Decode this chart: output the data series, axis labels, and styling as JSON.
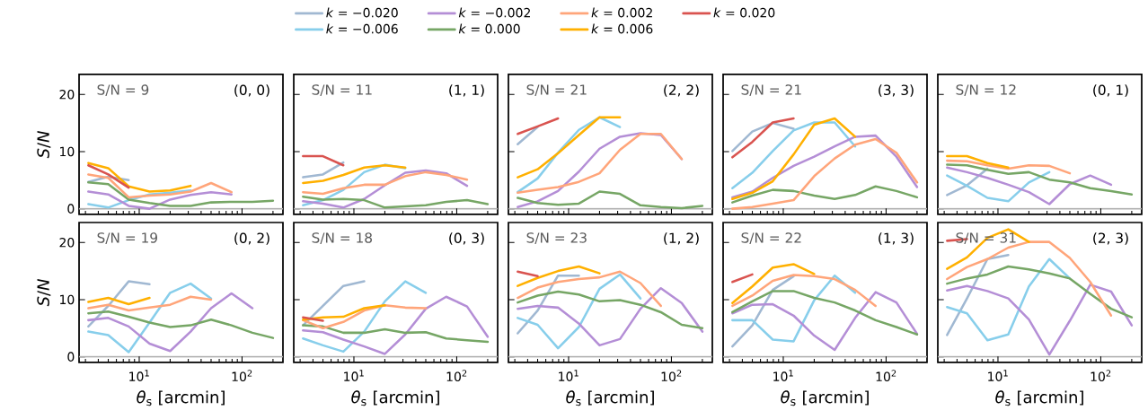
{
  "chart_data": [
    {
      "type": "line",
      "log": "x",
      "xlim": [
        2.6,
        250
      ],
      "ylim": [
        -1,
        23.5
      ],
      "xticks": [
        {
          "value": 3,
          "label": null
        },
        {
          "value": 4,
          "label": null
        },
        {
          "value": 5,
          "label": null
        },
        {
          "value": 6,
          "label": null
        },
        {
          "value": 7,
          "label": null
        },
        {
          "value": 8,
          "label": null
        },
        {
          "value": 9,
          "label": null
        },
        {
          "value": 10,
          "label": null
        },
        {
          "value": 20,
          "label": null
        },
        {
          "value": 30,
          "label": null
        },
        {
          "value": 40,
          "label": null
        },
        {
          "value": 50,
          "label": null
        },
        {
          "value": 60,
          "label": null
        },
        {
          "value": 70,
          "label": null
        },
        {
          "value": 80,
          "label": null
        },
        {
          "value": 90,
          "label": null
        },
        {
          "value": 100,
          "label": null
        },
        {
          "value": 200,
          "label": null
        }
      ],
      "yticks": [
        0,
        10,
        20
      ],
      "tick_labels": "y",
      "ylabel": "*S*/*N*",
      "annotations": [
        "S/N = 9",
        "(0, 0)"
      ],
      "ref_lines": [
        {
          "axis": "y",
          "value": 0,
          "color": "#b0b0b0"
        }
      ],
      "legend": "top",
      "x": [
        3.2,
        5,
        7.9,
        12.6,
        20,
        31.6,
        50,
        79,
        126,
        200
      ],
      "series": [
        {
          "name": "*k* = −0.020",
          "color": "#a0b8d2",
          "values": [
            4.7,
            5.6,
            5.0,
            null,
            null,
            null,
            null,
            null,
            null,
            null
          ]
        },
        {
          "name": "*k* = −0.006",
          "color": "#87ceeb",
          "values": [
            0.8,
            0.2,
            1.5,
            2.5,
            2.8,
            3.2,
            null,
            null,
            null,
            null
          ]
        },
        {
          "name": "*k* = −0.002",
          "color": "#b48ed6",
          "values": [
            3.0,
            2.5,
            0.5,
            0.0,
            1.6,
            2.4,
            2.9,
            2.5,
            null,
            null
          ]
        },
        {
          "name": "*k* = 0.000",
          "color": "#76a665",
          "values": [
            4.6,
            4.3,
            1.6,
            1.0,
            0.5,
            0.5,
            1.1,
            1.2,
            1.2,
            1.4
          ]
        },
        {
          "name": "*k* = 0.002",
          "color": "#ffa57a",
          "values": [
            6.0,
            5.4,
            2.0,
            2.3,
            2.5,
            3.0,
            4.5,
            2.9,
            null,
            null
          ]
        },
        {
          "name": "*k* = 0.006",
          "color": "#ffb000",
          "values": [
            8.0,
            7.1,
            3.9,
            3.0,
            3.2,
            4.0,
            null,
            null,
            null,
            null
          ]
        },
        {
          "name": "*k* = 0.020",
          "color": "#d9534f",
          "values": [
            7.6,
            6.0,
            3.7,
            null,
            null,
            null,
            null,
            null,
            null,
            null
          ]
        }
      ]
    },
    {
      "type": "line",
      "log": "x",
      "xlim": [
        2.6,
        250
      ],
      "ylim": [
        -1,
        23.5
      ],
      "xticks": [
        {
          "value": 3,
          "label": null
        },
        {
          "value": 4,
          "label": null
        },
        {
          "value": 5,
          "label": null
        },
        {
          "value": 6,
          "label": null
        },
        {
          "value": 7,
          "label": null
        },
        {
          "value": 8,
          "label": null
        },
        {
          "value": 9,
          "label": null
        },
        {
          "value": 10,
          "label": null
        },
        {
          "value": 20,
          "label": null
        },
        {
          "value": 30,
          "label": null
        },
        {
          "value": 40,
          "label": null
        },
        {
          "value": 50,
          "label": null
        },
        {
          "value": 60,
          "label": null
        },
        {
          "value": 70,
          "label": null
        },
        {
          "value": 80,
          "label": null
        },
        {
          "value": 90,
          "label": null
        },
        {
          "value": 100,
          "label": null
        },
        {
          "value": 200,
          "label": null
        }
      ],
      "yticks": [
        0,
        10,
        20
      ],
      "tick_labels": false,
      "annotations": [
        "S/N = 11",
        "(1, 1)"
      ],
      "ref_lines": [
        {
          "axis": "y",
          "value": 0,
          "color": "#b0b0b0"
        }
      ],
      "x": [
        3.2,
        5,
        7.9,
        12.6,
        20,
        31.6,
        50,
        79,
        126,
        200
      ],
      "series": [
        {
          "color": "#a0b8d2",
          "values": [
            5.5,
            6.0,
            8.1,
            null,
            null,
            null,
            null,
            null,
            null,
            null
          ]
        },
        {
          "color": "#87ceeb",
          "values": [
            0.6,
            1.5,
            3.3,
            6.4,
            7.7,
            7.1,
            null,
            null,
            null,
            null
          ]
        },
        {
          "color": "#b48ed6",
          "values": [
            1.3,
            0.9,
            0.2,
            1.7,
            4.1,
            6.3,
            6.7,
            6.2,
            4.0,
            null
          ]
        },
        {
          "color": "#76a665",
          "values": [
            2.1,
            1.6,
            1.7,
            1.5,
            0.2,
            0.4,
            0.6,
            1.2,
            1.5,
            0.8
          ]
        },
        {
          "color": "#ffa57a",
          "values": [
            2.9,
            2.6,
            3.6,
            4.2,
            4.2,
            5.7,
            6.4,
            5.9,
            5.1,
            null
          ]
        },
        {
          "color": "#ffb000",
          "values": [
            4.5,
            4.9,
            5.9,
            7.2,
            7.6,
            7.2,
            null,
            null,
            null,
            null
          ]
        },
        {
          "color": "#d9534f",
          "values": [
            9.2,
            9.2,
            7.6,
            null,
            null,
            null,
            null,
            null,
            null,
            null
          ]
        }
      ]
    },
    {
      "type": "line",
      "log": "x",
      "xlim": [
        2.6,
        250
      ],
      "ylim": [
        -1,
        23.5
      ],
      "xticks": [
        {
          "value": 3,
          "label": null
        },
        {
          "value": 4,
          "label": null
        },
        {
          "value": 5,
          "label": null
        },
        {
          "value": 6,
          "label": null
        },
        {
          "value": 7,
          "label": null
        },
        {
          "value": 8,
          "label": null
        },
        {
          "value": 9,
          "label": null
        },
        {
          "value": 10,
          "label": null
        },
        {
          "value": 20,
          "label": null
        },
        {
          "value": 30,
          "label": null
        },
        {
          "value": 40,
          "label": null
        },
        {
          "value": 50,
          "label": null
        },
        {
          "value": 60,
          "label": null
        },
        {
          "value": 70,
          "label": null
        },
        {
          "value": 80,
          "label": null
        },
        {
          "value": 90,
          "label": null
        },
        {
          "value": 100,
          "label": null
        },
        {
          "value": 200,
          "label": null
        }
      ],
      "yticks": [
        0,
        10,
        20
      ],
      "tick_labels": false,
      "annotations": [
        "S/N = 21",
        "(2, 2)"
      ],
      "ref_lines": [
        {
          "axis": "y",
          "value": 0,
          "color": "#b0b0b0"
        }
      ],
      "x": [
        3.2,
        5,
        7.9,
        12.6,
        20,
        31.6,
        50,
        79,
        126,
        200
      ],
      "series": [
        {
          "color": "#a0b8d2",
          "values": [
            11.3,
            14.3,
            null,
            null,
            null,
            null,
            null,
            null,
            null,
            null
          ]
        },
        {
          "color": "#87ceeb",
          "values": [
            2.9,
            5.3,
            9.8,
            13.8,
            16.0,
            14.3,
            null,
            null,
            null,
            null
          ]
        },
        {
          "color": "#b48ed6",
          "values": [
            0.3,
            1.3,
            3.1,
            6.5,
            10.5,
            12.6,
            13.2,
            12.9,
            8.7,
            null
          ]
        },
        {
          "color": "#76a665",
          "values": [
            1.9,
            1.0,
            0.7,
            0.9,
            3.0,
            2.6,
            0.6,
            0.3,
            0.1,
            0.5
          ]
        },
        {
          "color": "#ffa57a",
          "values": [
            2.8,
            3.3,
            3.8,
            4.7,
            6.2,
            10.3,
            13.1,
            13.1,
            8.7,
            null
          ]
        },
        {
          "color": "#ffb000",
          "values": [
            5.5,
            6.9,
            9.7,
            12.9,
            16.0,
            16.0,
            null,
            null,
            null,
            null
          ]
        },
        {
          "color": "#d9534f",
          "values": [
            13.1,
            14.4,
            15.8,
            null,
            null,
            null,
            null,
            null,
            null,
            null
          ]
        }
      ]
    },
    {
      "type": "line",
      "log": "x",
      "xlim": [
        2.6,
        250
      ],
      "ylim": [
        -1,
        23.5
      ],
      "xticks": [
        {
          "value": 3,
          "label": null
        },
        {
          "value": 4,
          "label": null
        },
        {
          "value": 5,
          "label": null
        },
        {
          "value": 6,
          "label": null
        },
        {
          "value": 7,
          "label": null
        },
        {
          "value": 8,
          "label": null
        },
        {
          "value": 9,
          "label": null
        },
        {
          "value": 10,
          "label": null
        },
        {
          "value": 20,
          "label": null
        },
        {
          "value": 30,
          "label": null
        },
        {
          "value": 40,
          "label": null
        },
        {
          "value": 50,
          "label": null
        },
        {
          "value": 60,
          "label": null
        },
        {
          "value": 70,
          "label": null
        },
        {
          "value": 80,
          "label": null
        },
        {
          "value": 90,
          "label": null
        },
        {
          "value": 100,
          "label": null
        },
        {
          "value": 200,
          "label": null
        }
      ],
      "yticks": [
        0,
        10,
        20
      ],
      "tick_labels": false,
      "annotations": [
        "S/N = 21",
        "(3, 3)"
      ],
      "ref_lines": [
        {
          "axis": "y",
          "value": 0,
          "color": "#b0b0b0"
        }
      ],
      "x": [
        3.2,
        5,
        7.9,
        12.6,
        20,
        31.6,
        50,
        79,
        126,
        200
      ],
      "series": [
        {
          "color": "#a0b8d2",
          "values": [
            10.1,
            13.5,
            15.0,
            14.0,
            null,
            null,
            null,
            null,
            null,
            null
          ]
        },
        {
          "color": "#87ceeb",
          "values": [
            3.6,
            6.3,
            10.1,
            13.7,
            15.1,
            15.1,
            10.9,
            null,
            null,
            null
          ]
        },
        {
          "color": "#b48ed6",
          "values": [
            2.0,
            3.0,
            5.4,
            7.5,
            9.1,
            10.9,
            12.6,
            12.8,
            9.1,
            3.8
          ]
        },
        {
          "color": "#76a665",
          "values": [
            1.1,
            2.3,
            3.3,
            3.1,
            2.3,
            1.7,
            2.4,
            3.9,
            3.1,
            2.0
          ]
        },
        {
          "color": "#ffa57a",
          "values": [
            0.0,
            0.3,
            0.9,
            1.5,
            5.7,
            8.8,
            11.2,
            12.2,
            9.8,
            4.6
          ]
        },
        {
          "color": "#ffb000",
          "values": [
            1.7,
            2.8,
            4.8,
            9.5,
            14.7,
            15.8,
            12.6,
            null,
            null,
            null
          ]
        },
        {
          "color": "#d9534f",
          "values": [
            9.0,
            11.7,
            15.1,
            15.8,
            null,
            null,
            null,
            null,
            null,
            null
          ]
        }
      ]
    },
    {
      "type": "line",
      "log": "x",
      "xlim": [
        2.6,
        250
      ],
      "ylim": [
        -1,
        23.5
      ],
      "xticks": [
        {
          "value": 3,
          "label": null
        },
        {
          "value": 4,
          "label": null
        },
        {
          "value": 5,
          "label": null
        },
        {
          "value": 6,
          "label": null
        },
        {
          "value": 7,
          "label": null
        },
        {
          "value": 8,
          "label": null
        },
        {
          "value": 9,
          "label": null
        },
        {
          "value": 10,
          "label": null
        },
        {
          "value": 20,
          "label": null
        },
        {
          "value": 30,
          "label": null
        },
        {
          "value": 40,
          "label": null
        },
        {
          "value": 50,
          "label": null
        },
        {
          "value": 60,
          "label": null
        },
        {
          "value": 70,
          "label": null
        },
        {
          "value": 80,
          "label": null
        },
        {
          "value": 90,
          "label": null
        },
        {
          "value": 100,
          "label": null
        },
        {
          "value": 200,
          "label": null
        }
      ],
      "yticks": [
        0,
        10,
        20
      ],
      "tick_labels": false,
      "annotations": [
        "S/N = 12",
        "(0, 1)"
      ],
      "ref_lines": [
        {
          "axis": "y",
          "value": 0,
          "color": "#b0b0b0"
        }
      ],
      "x": [
        3.2,
        5,
        7.9,
        12.6,
        20,
        31.6,
        50,
        79,
        126,
        200
      ],
      "series": [
        {
          "color": "#a0b8d2",
          "values": [
            2.4,
            4.1,
            7.0,
            null,
            null,
            null,
            null,
            null,
            null,
            null
          ]
        },
        {
          "color": "#87ceeb",
          "values": [
            5.8,
            4.0,
            1.9,
            1.3,
            4.6,
            6.4,
            null,
            null,
            null,
            null
          ]
        },
        {
          "color": "#b48ed6",
          "values": [
            7.2,
            6.4,
            5.4,
            4.2,
            2.9,
            0.8,
            4.3,
            5.8,
            4.2,
            null
          ]
        },
        {
          "color": "#76a665",
          "values": [
            7.7,
            7.6,
            6.8,
            6.1,
            6.4,
            5.1,
            4.6,
            3.6,
            3.1,
            2.5
          ]
        },
        {
          "color": "#ffa57a",
          "values": [
            8.4,
            8.3,
            7.6,
            7.0,
            7.6,
            7.5,
            6.2,
            null,
            null,
            null
          ]
        },
        {
          "color": "#ffb000",
          "values": [
            9.2,
            9.2,
            8.0,
            7.2,
            null,
            null,
            null,
            null,
            null,
            null
          ]
        }
      ]
    },
    {
      "type": "line",
      "log": "x",
      "xlim": [
        2.6,
        250
      ],
      "ylim": [
        -1,
        23.5
      ],
      "xticks": [
        {
          "value": 3,
          "label": null
        },
        {
          "value": 4,
          "label": null
        },
        {
          "value": 5,
          "label": null
        },
        {
          "value": 6,
          "label": null
        },
        {
          "value": 7,
          "label": null
        },
        {
          "value": 8,
          "label": null
        },
        {
          "value": 9,
          "label": null
        },
        {
          "value": 10,
          "label": "10$^{1}$"
        },
        {
          "value": 20,
          "label": null
        },
        {
          "value": 30,
          "label": null
        },
        {
          "value": 40,
          "label": null
        },
        {
          "value": 50,
          "label": null
        },
        {
          "value": 60,
          "label": null
        },
        {
          "value": 70,
          "label": null
        },
        {
          "value": 80,
          "label": null
        },
        {
          "value": 90,
          "label": null
        },
        {
          "value": 100,
          "label": "10$^{2}$"
        },
        {
          "value": 200,
          "label": null
        }
      ],
      "yticks": [
        0,
        10,
        20
      ],
      "xlabel": "*θ*$_{s}$ [arcmin]",
      "ylabel": "*S*/*N*",
      "annotations": [
        "S/N = 19",
        "(0, 2)"
      ],
      "ref_lines": [
        {
          "axis": "y",
          "value": 0,
          "color": "#b0b0b0"
        }
      ],
      "x": [
        3.2,
        5,
        7.9,
        12.6,
        20,
        31.6,
        50,
        79,
        126,
        200
      ],
      "series": [
        {
          "color": "#a0b8d2",
          "values": [
            5.3,
            8.9,
            13.2,
            12.7,
            null,
            null,
            null,
            null,
            null,
            null
          ]
        },
        {
          "color": "#87ceeb",
          "values": [
            4.4,
            3.8,
            0.8,
            6.0,
            11.2,
            12.8,
            10.2,
            null,
            null,
            null
          ]
        },
        {
          "color": "#b48ed6",
          "values": [
            6.4,
            6.8,
            5.3,
            2.3,
            1.0,
            4.4,
            8.5,
            11.1,
            8.5,
            null
          ]
        },
        {
          "color": "#76a665",
          "values": [
            7.6,
            7.9,
            7.0,
            6.0,
            5.2,
            5.5,
            6.5,
            5.5,
            4.2,
            3.3
          ]
        },
        {
          "color": "#ffa57a",
          "values": [
            8.5,
            9.1,
            8.1,
            8.6,
            9.1,
            10.5,
            10.0,
            null,
            null,
            null
          ]
        },
        {
          "color": "#ffb000",
          "values": [
            9.6,
            10.3,
            9.2,
            10.3,
            null,
            null,
            null,
            null,
            null,
            null
          ]
        }
      ]
    },
    {
      "type": "line",
      "log": "x",
      "xlim": [
        2.6,
        250
      ],
      "ylim": [
        -1,
        23.5
      ],
      "xticks": [
        {
          "value": 3,
          "label": null
        },
        {
          "value": 4,
          "label": null
        },
        {
          "value": 5,
          "label": null
        },
        {
          "value": 6,
          "label": null
        },
        {
          "value": 7,
          "label": null
        },
        {
          "value": 8,
          "label": null
        },
        {
          "value": 9,
          "label": null
        },
        {
          "value": 10,
          "label": "10$^{1}$"
        },
        {
          "value": 20,
          "label": null
        },
        {
          "value": 30,
          "label": null
        },
        {
          "value": 40,
          "label": null
        },
        {
          "value": 50,
          "label": null
        },
        {
          "value": 60,
          "label": null
        },
        {
          "value": 70,
          "label": null
        },
        {
          "value": 80,
          "label": null
        },
        {
          "value": 90,
          "label": null
        },
        {
          "value": 100,
          "label": "10$^{2}$"
        },
        {
          "value": 200,
          "label": null
        }
      ],
      "yticks": [
        0,
        10,
        20
      ],
      "tick_labels": "x",
      "xlabel": "*θ*$_{s}$ [arcmin]",
      "annotations": [
        "S/N = 18",
        "(0, 3)"
      ],
      "ref_lines": [
        {
          "axis": "y",
          "value": 0,
          "color": "#b0b0b0"
        }
      ],
      "x": [
        3.2,
        5,
        7.9,
        12.6,
        20,
        31.6,
        50,
        79,
        126,
        200
      ],
      "series": [
        {
          "color": "#a0b8d2",
          "values": [
            5.5,
            8.9,
            12.4,
            13.2,
            null,
            null,
            null,
            null,
            null,
            null
          ]
        },
        {
          "color": "#87ceeb",
          "values": [
            3.2,
            2.0,
            0.9,
            4.4,
            9.7,
            13.2,
            11.2,
            null,
            null,
            null
          ]
        },
        {
          "color": "#b48ed6",
          "values": [
            4.6,
            4.3,
            3.0,
            1.8,
            0.5,
            3.9,
            8.4,
            10.5,
            8.8,
            3.5
          ]
        },
        {
          "color": "#76a665",
          "values": [
            5.5,
            5.3,
            4.2,
            4.2,
            4.8,
            4.2,
            4.3,
            3.2,
            2.9,
            2.6
          ]
        },
        {
          "color": "#ffa57a",
          "values": [
            6.4,
            5.0,
            6.1,
            8.1,
            9.0,
            8.6,
            8.5,
            null,
            null,
            null
          ]
        },
        {
          "color": "#ffb000",
          "values": [
            6.5,
            6.9,
            7.0,
            8.5,
            9.0,
            null,
            null,
            null,
            null,
            null
          ]
        },
        {
          "color": "#d9534f",
          "values": [
            6.9,
            6.3,
            null,
            null,
            null,
            null,
            null,
            null,
            null,
            null
          ]
        }
      ]
    },
    {
      "type": "line",
      "log": "x",
      "xlim": [
        2.6,
        250
      ],
      "ylim": [
        -1,
        23.5
      ],
      "xticks": [
        {
          "value": 3,
          "label": null
        },
        {
          "value": 4,
          "label": null
        },
        {
          "value": 5,
          "label": null
        },
        {
          "value": 6,
          "label": null
        },
        {
          "value": 7,
          "label": null
        },
        {
          "value": 8,
          "label": null
        },
        {
          "value": 9,
          "label": null
        },
        {
          "value": 10,
          "label": "10$^{1}$"
        },
        {
          "value": 20,
          "label": null
        },
        {
          "value": 30,
          "label": null
        },
        {
          "value": 40,
          "label": null
        },
        {
          "value": 50,
          "label": null
        },
        {
          "value": 60,
          "label": null
        },
        {
          "value": 70,
          "label": null
        },
        {
          "value": 80,
          "label": null
        },
        {
          "value": 90,
          "label": null
        },
        {
          "value": 100,
          "label": "10$^{2}$"
        },
        {
          "value": 200,
          "label": null
        }
      ],
      "yticks": [
        0,
        10,
        20
      ],
      "tick_labels": "x",
      "xlabel": "*θ*$_{s}$ [arcmin]",
      "annotations": [
        "S/N = 23",
        "(1, 2)"
      ],
      "ref_lines": [
        {
          "axis": "y",
          "value": 0,
          "color": "#b0b0b0"
        }
      ],
      "x": [
        3.2,
        5,
        7.9,
        12.6,
        20,
        31.6,
        50,
        79,
        126,
        200
      ],
      "series": [
        {
          "color": "#a0b8d2",
          "values": [
            4.1,
            8.1,
            14.2,
            14.2,
            null,
            null,
            null,
            null,
            null,
            null
          ]
        },
        {
          "color": "#87ceeb",
          "values": [
            6.8,
            5.6,
            1.5,
            5.2,
            11.9,
            14.4,
            10.2,
            null,
            null,
            null
          ]
        },
        {
          "color": "#b48ed6",
          "values": [
            8.4,
            8.9,
            8.6,
            5.8,
            2.0,
            3.1,
            8.4,
            12.0,
            9.4,
            4.4
          ]
        },
        {
          "color": "#76a665",
          "values": [
            9.5,
            10.7,
            11.4,
            10.9,
            9.7,
            9.9,
            9.1,
            7.8,
            5.6,
            5.0
          ]
        },
        {
          "color": "#ffa57a",
          "values": [
            10.3,
            12.1,
            13.1,
            13.6,
            13.9,
            14.9,
            12.9,
            8.9,
            null,
            null
          ]
        },
        {
          "color": "#ffb000",
          "values": [
            12.4,
            13.8,
            15.0,
            15.8,
            14.6,
            null,
            null,
            null,
            null,
            null
          ]
        },
        {
          "color": "#d9534f",
          "values": [
            14.9,
            14.1,
            null,
            null,
            null,
            null,
            null,
            null,
            null,
            null
          ]
        }
      ]
    },
    {
      "type": "line",
      "log": "x",
      "xlim": [
        2.6,
        250
      ],
      "ylim": [
        -1,
        23.5
      ],
      "xticks": [
        {
          "value": 3,
          "label": null
        },
        {
          "value": 4,
          "label": null
        },
        {
          "value": 5,
          "label": null
        },
        {
          "value": 6,
          "label": null
        },
        {
          "value": 7,
          "label": null
        },
        {
          "value": 8,
          "label": null
        },
        {
          "value": 9,
          "label": null
        },
        {
          "value": 10,
          "label": "10$^{1}$"
        },
        {
          "value": 20,
          "label": null
        },
        {
          "value": 30,
          "label": null
        },
        {
          "value": 40,
          "label": null
        },
        {
          "value": 50,
          "label": null
        },
        {
          "value": 60,
          "label": null
        },
        {
          "value": 70,
          "label": null
        },
        {
          "value": 80,
          "label": null
        },
        {
          "value": 90,
          "label": null
        },
        {
          "value": 100,
          "label": "10$^{2}$"
        },
        {
          "value": 200,
          "label": null
        }
      ],
      "yticks": [
        0,
        10,
        20
      ],
      "tick_labels": "x",
      "xlabel": "*θ*$_{s}$ [arcmin]",
      "annotations": [
        "S/N = 22",
        "(1, 3)"
      ],
      "ref_lines": [
        {
          "axis": "y",
          "value": 0,
          "color": "#b0b0b0"
        }
      ],
      "x": [
        3.2,
        5,
        7.9,
        12.6,
        20,
        31.6,
        50,
        79,
        126,
        200
      ],
      "series": [
        {
          "color": "#a0b8d2",
          "values": [
            1.8,
            5.5,
            11.7,
            14.1,
            null,
            null,
            null,
            null,
            null,
            null
          ]
        },
        {
          "color": "#87ceeb",
          "values": [
            6.4,
            6.4,
            3.0,
            2.7,
            9.9,
            14.2,
            11.2,
            null,
            null,
            null
          ]
        },
        {
          "color": "#b48ed6",
          "values": [
            7.6,
            9.1,
            9.2,
            7.2,
            3.7,
            1.2,
            6.8,
            11.3,
            9.5,
            4.0
          ]
        },
        {
          "color": "#76a665",
          "values": [
            7.8,
            9.7,
            11.5,
            11.5,
            10.3,
            9.5,
            8.1,
            6.4,
            5.2,
            3.9
          ]
        },
        {
          "color": "#ffa57a",
          "values": [
            8.9,
            10.7,
            13.3,
            14.3,
            14.1,
            13.6,
            11.7,
            8.9,
            null,
            null
          ]
        },
        {
          "color": "#ffb000",
          "values": [
            9.4,
            12.3,
            15.6,
            16.2,
            14.5,
            null,
            null,
            null,
            null,
            null
          ]
        },
        {
          "color": "#d9534f",
          "values": [
            13.1,
            14.4,
            null,
            null,
            null,
            null,
            null,
            null,
            null,
            null
          ]
        }
      ]
    },
    {
      "type": "line",
      "log": "x",
      "xlim": [
        2.6,
        250
      ],
      "ylim": [
        -1,
        23.5
      ],
      "xticks": [
        {
          "value": 3,
          "label": null
        },
        {
          "value": 4,
          "label": null
        },
        {
          "value": 5,
          "label": null
        },
        {
          "value": 6,
          "label": null
        },
        {
          "value": 7,
          "label": null
        },
        {
          "value": 8,
          "label": null
        },
        {
          "value": 9,
          "label": null
        },
        {
          "value": 10,
          "label": "10$^{1}$"
        },
        {
          "value": 20,
          "label": null
        },
        {
          "value": 30,
          "label": null
        },
        {
          "value": 40,
          "label": null
        },
        {
          "value": 50,
          "label": null
        },
        {
          "value": 60,
          "label": null
        },
        {
          "value": 70,
          "label": null
        },
        {
          "value": 80,
          "label": null
        },
        {
          "value": 90,
          "label": null
        },
        {
          "value": 100,
          "label": "10$^{2}$"
        },
        {
          "value": 200,
          "label": null
        }
      ],
      "yticks": [
        0,
        10,
        20
      ],
      "tick_labels": "x",
      "xlabel": "*θ*$_{s}$ [arcmin]",
      "annotations": [
        "S/N = 31",
        "(2, 3)"
      ],
      "ref_lines": [
        {
          "axis": "y",
          "value": 0,
          "color": "#b0b0b0"
        }
      ],
      "x": [
        3.2,
        5,
        7.9,
        12.6,
        20,
        31.6,
        50,
        79,
        126,
        200
      ],
      "series": [
        {
          "color": "#a0b8d2",
          "values": [
            3.8,
            10.2,
            17.1,
            17.8,
            null,
            null,
            null,
            null,
            null,
            null
          ]
        },
        {
          "color": "#87ceeb",
          "values": [
            8.7,
            7.6,
            2.9,
            3.9,
            12.3,
            17.1,
            13.7,
            null,
            null,
            null
          ]
        },
        {
          "color": "#b48ed6",
          "values": [
            11.6,
            12.4,
            11.5,
            10.2,
            6.5,
            0.4,
            6.3,
            12.6,
            11.4,
            5.5
          ]
        },
        {
          "color": "#76a665",
          "values": [
            12.8,
            13.7,
            14.4,
            15.8,
            15.3,
            14.6,
            13.7,
            11.0,
            8.4,
            6.9
          ]
        },
        {
          "color": "#ffa57a",
          "values": [
            13.6,
            15.7,
            17.1,
            19.1,
            20.1,
            20.1,
            17.3,
            13.1,
            7.2,
            null
          ]
        },
        {
          "color": "#ffb000",
          "values": [
            15.4,
            17.4,
            20.8,
            22.3,
            20.1,
            null,
            null,
            null,
            null,
            null
          ]
        },
        {
          "color": "#d9534f",
          "values": [
            20.3,
            20.6,
            null,
            null,
            null,
            null,
            null,
            null,
            null,
            null
          ]
        }
      ]
    }
  ]
}
